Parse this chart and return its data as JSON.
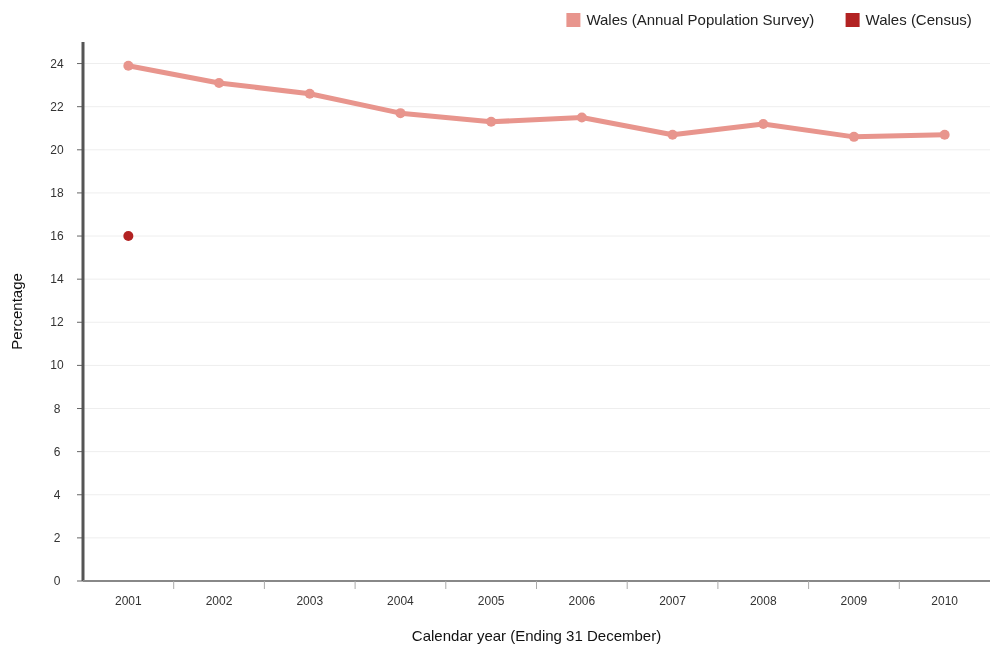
{
  "chart_data": {
    "type": "line",
    "xlabel": "Calendar year (Ending 31 December)",
    "ylabel": "Percentage",
    "categories": [
      "2001",
      "2002",
      "2003",
      "2004",
      "2005",
      "2006",
      "2007",
      "2008",
      "2009",
      "2010"
    ],
    "series": [
      {
        "name": "Wales (Annual Population Survey)",
        "color": "#e8958d",
        "values": [
          23.9,
          23.1,
          22.6,
          21.7,
          21.3,
          21.5,
          20.7,
          21.2,
          20.6,
          20.7
        ]
      },
      {
        "name": "Wales (Census)",
        "type": "scatter",
        "color": "#b22222",
        "values": [
          16.0,
          null,
          null,
          null,
          null,
          null,
          null,
          null,
          null,
          null
        ]
      }
    ],
    "ylim": [
      0,
      25
    ],
    "yticks": [
      0,
      2,
      4,
      6,
      8,
      10,
      12,
      14,
      16,
      18,
      20,
      22,
      24
    ],
    "grid": "y",
    "legend": "top right",
    "marker": "circle"
  }
}
